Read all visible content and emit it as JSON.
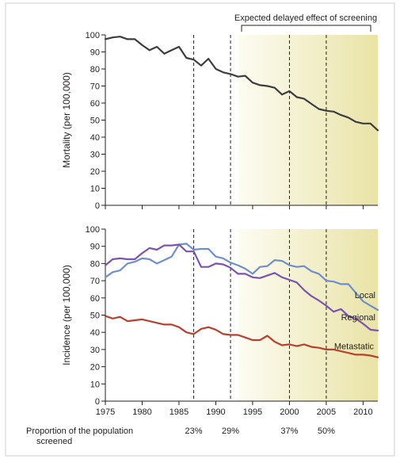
{
  "annotation": {
    "delayed_effect": "Expected delayed effect of screening"
  },
  "footer": {
    "label_line1": "Proportion of the population",
    "label_line2": "screened",
    "proportions": [
      {
        "year": 1987,
        "text": "23%"
      },
      {
        "year": 1992,
        "text": "29%"
      },
      {
        "year": 2000,
        "text": "37%"
      },
      {
        "year": 2005,
        "text": "50%"
      }
    ]
  },
  "colors": {
    "mortality": "#3d3d3f",
    "local": "#6f8fcc",
    "regional": "#7b53b0",
    "metastatic": "#b8402e",
    "shade_light": "#fdfcf2",
    "shade_dark": "#e9e3a6"
  },
  "chart_data": [
    {
      "type": "line",
      "ylabel": "Mortality (per 100,000)",
      "xlim": [
        1975,
        2012
      ],
      "ylim": [
        0,
        100
      ],
      "x_ticks": [
        1975,
        1980,
        1985,
        1990,
        1995,
        2000,
        2005,
        2010
      ],
      "y_ticks": [
        0,
        10,
        20,
        30,
        40,
        50,
        60,
        70,
        80,
        90,
        100
      ],
      "vertical_dashed_lines": [
        1987,
        1992,
        2000,
        2005
      ],
      "shaded_region": [
        1993,
        2012
      ],
      "series": [
        {
          "name": "",
          "x": [
            1975,
            1976,
            1977,
            1978,
            1979,
            1980,
            1981,
            1982,
            1983,
            1984,
            1985,
            1986,
            1987,
            1988,
            1989,
            1990,
            1991,
            1992,
            1993,
            1994,
            1995,
            1996,
            1997,
            1998,
            1999,
            2000,
            2001,
            2002,
            2003,
            2004,
            2005,
            2006,
            2007,
            2008,
            2009,
            2010,
            2011,
            2012
          ],
          "values": [
            97.5,
            98.5,
            99,
            97.5,
            97.5,
            94,
            91,
            93,
            89,
            91,
            93,
            86.5,
            85.5,
            82,
            86,
            80,
            78,
            77,
            75.5,
            76,
            72,
            70.5,
            70,
            69,
            65,
            67,
            63.5,
            62.5,
            59.5,
            56.5,
            55.5,
            55,
            53,
            51.5,
            49,
            48,
            48,
            44
          ]
        }
      ]
    },
    {
      "type": "line",
      "ylabel": "Incidence (per 100,000)",
      "xlim": [
        1975,
        2012
      ],
      "ylim": [
        0,
        100
      ],
      "x_ticks": [
        1975,
        1980,
        1985,
        1990,
        1995,
        2000,
        2005,
        2010
      ],
      "x_tick_labels": [
        "1975",
        "1980",
        "1985",
        "1990",
        "1995",
        "2000",
        "2005",
        "2010"
      ],
      "y_ticks": [
        0,
        10,
        20,
        30,
        40,
        50,
        60,
        70,
        80,
        90,
        100
      ],
      "vertical_dashed_lines": [
        1987,
        1992,
        2000,
        2005
      ],
      "shaded_region": [
        1993,
        2012
      ],
      "series": [
        {
          "name": "Local",
          "x": [
            1975,
            1976,
            1977,
            1978,
            1979,
            1980,
            1981,
            1982,
            1983,
            1984,
            1985,
            1986,
            1987,
            1988,
            1989,
            1990,
            1991,
            1992,
            1993,
            1994,
            1995,
            1996,
            1997,
            1998,
            1999,
            2000,
            2001,
            2002,
            2003,
            2004,
            2005,
            2006,
            2007,
            2008,
            2009,
            2010,
            2011,
            2012
          ],
          "values": [
            72,
            75,
            76,
            80,
            81,
            83,
            82.5,
            80,
            82,
            84,
            91,
            91.5,
            88,
            88.5,
            88.5,
            84,
            83,
            80.5,
            79,
            77,
            74,
            78,
            78.5,
            82,
            81.5,
            79,
            78,
            78.5,
            75.5,
            74,
            70,
            69.5,
            68,
            68,
            63,
            58,
            55.5,
            53
          ]
        },
        {
          "name": "Regional",
          "x": [
            1975,
            1976,
            1977,
            1978,
            1979,
            1980,
            1981,
            1982,
            1983,
            1984,
            1985,
            1986,
            1987,
            1988,
            1989,
            1990,
            1991,
            1992,
            1993,
            1994,
            1995,
            1996,
            1997,
            1998,
            1999,
            2000,
            2001,
            2002,
            2003,
            2004,
            2005,
            2006,
            2007,
            2008,
            2009,
            2010,
            2011,
            2012
          ],
          "values": [
            79,
            82.5,
            83,
            82.5,
            82.5,
            86,
            89,
            88,
            90.5,
            90.5,
            91,
            87,
            87,
            78,
            78,
            80,
            79.5,
            77.5,
            74,
            74,
            72,
            71.5,
            73,
            74.5,
            72,
            70.5,
            69,
            64.5,
            61,
            58.5,
            55.5,
            52,
            53.5,
            49.5,
            48,
            45,
            41.5,
            41
          ]
        },
        {
          "name": "Metastatic",
          "x": [
            1975,
            1976,
            1977,
            1978,
            1979,
            1980,
            1981,
            1982,
            1983,
            1984,
            1985,
            1986,
            1987,
            1988,
            1989,
            1990,
            1991,
            1992,
            1993,
            1994,
            1995,
            1996,
            1997,
            1998,
            1999,
            2000,
            2001,
            2002,
            2003,
            2004,
            2005,
            2006,
            2007,
            2008,
            2009,
            2010,
            2011,
            2012
          ],
          "values": [
            49.5,
            48,
            49,
            46.5,
            47,
            47.5,
            46.5,
            45.5,
            44.5,
            44.5,
            43,
            40,
            39,
            42,
            43,
            41.5,
            39,
            38.5,
            38.5,
            37,
            35.5,
            35.5,
            38,
            34.5,
            32.5,
            33,
            32,
            33,
            31.5,
            31,
            30,
            30,
            29,
            28,
            27,
            27,
            26.5,
            25.5
          ]
        }
      ]
    }
  ]
}
